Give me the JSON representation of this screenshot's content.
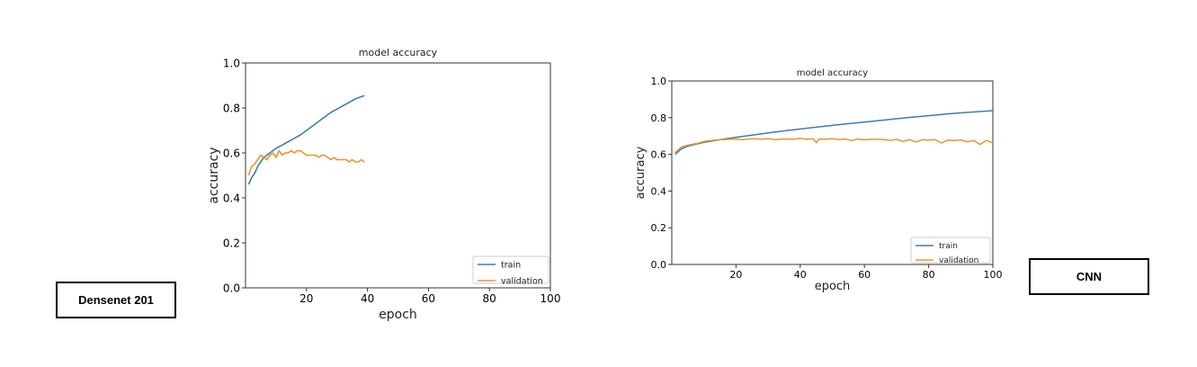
{
  "labels": {
    "left": "Densenet 201",
    "right": "CNN"
  },
  "colors": {
    "train": "#3b7fb5",
    "validation": "#f0922e",
    "axis": "#333333",
    "legend_border": "#cccccc"
  },
  "chart_data": [
    {
      "type": "line",
      "title": "model accuracy",
      "xlabel": "epoch",
      "ylabel": "accuracy",
      "xlim": [
        0,
        100
      ],
      "ylim": [
        0.0,
        1.0
      ],
      "xticks": [
        20,
        40,
        60,
        80,
        100
      ],
      "yticks": [
        0.0,
        0.2,
        0.4,
        0.6,
        0.8,
        1.0
      ],
      "xtick_labels": [
        "20",
        "40",
        "60",
        "80",
        "100"
      ],
      "ytick_labels": [
        "0.0",
        "0.2",
        "0.4",
        "0.6",
        "0.8",
        "1.0"
      ],
      "legend_position": "lower-right",
      "grid": false,
      "series": [
        {
          "name": "train",
          "x": [
            1,
            2,
            3,
            4,
            5,
            6,
            8,
            10,
            12,
            14,
            16,
            18,
            20,
            22,
            24,
            26,
            28,
            30,
            32,
            34,
            36,
            38,
            39
          ],
          "y": [
            0.46,
            0.49,
            0.51,
            0.54,
            0.56,
            0.58,
            0.6,
            0.62,
            0.635,
            0.65,
            0.665,
            0.68,
            0.7,
            0.72,
            0.74,
            0.76,
            0.78,
            0.795,
            0.81,
            0.825,
            0.84,
            0.85,
            0.855
          ]
        },
        {
          "name": "validation",
          "x": [
            1,
            2,
            3,
            4,
            5,
            6,
            7,
            8,
            9,
            10,
            11,
            12,
            13,
            14,
            15,
            16,
            17,
            18,
            19,
            20,
            21,
            22,
            23,
            24,
            25,
            26,
            27,
            28,
            29,
            30,
            31,
            32,
            33,
            34,
            35,
            36,
            37,
            38,
            39
          ],
          "y": [
            0.5,
            0.54,
            0.55,
            0.57,
            0.59,
            0.58,
            0.57,
            0.59,
            0.6,
            0.58,
            0.61,
            0.59,
            0.6,
            0.6,
            0.61,
            0.6,
            0.61,
            0.61,
            0.6,
            0.59,
            0.59,
            0.59,
            0.59,
            0.58,
            0.59,
            0.59,
            0.58,
            0.57,
            0.58,
            0.57,
            0.57,
            0.57,
            0.57,
            0.56,
            0.57,
            0.56,
            0.56,
            0.57,
            0.56
          ]
        }
      ]
    },
    {
      "type": "line",
      "title": "model accuracy",
      "xlabel": "epoch",
      "ylabel": "accuracy",
      "xlim": [
        0,
        100
      ],
      "ylim": [
        0.0,
        1.0
      ],
      "xticks": [
        20,
        40,
        60,
        80,
        100
      ],
      "yticks": [
        0.0,
        0.2,
        0.4,
        0.6,
        0.8,
        1.0
      ],
      "xtick_labels": [
        "20",
        "40",
        "60",
        "80",
        "100"
      ],
      "ytick_labels": [
        "0.0",
        "0.2",
        "0.4",
        "0.6",
        "0.8",
        "1.0"
      ],
      "legend_position": "lower-right",
      "grid": false,
      "series": [
        {
          "name": "train",
          "x": [
            1,
            3,
            5,
            10,
            15,
            20,
            25,
            30,
            35,
            40,
            45,
            50,
            55,
            60,
            65,
            70,
            75,
            80,
            85,
            90,
            95,
            100
          ],
          "y": [
            0.6,
            0.63,
            0.645,
            0.665,
            0.68,
            0.693,
            0.705,
            0.717,
            0.728,
            0.738,
            0.748,
            0.758,
            0.767,
            0.776,
            0.785,
            0.794,
            0.803,
            0.811,
            0.819,
            0.826,
            0.832,
            0.838
          ]
        },
        {
          "name": "validation",
          "x": [
            1,
            3,
            5,
            8,
            10,
            12,
            15,
            18,
            20,
            22,
            25,
            28,
            30,
            32,
            35,
            38,
            40,
            42,
            44,
            45,
            46,
            48,
            50,
            52,
            54,
            56,
            58,
            60,
            62,
            64,
            66,
            68,
            70,
            72,
            74,
            76,
            78,
            80,
            82,
            84,
            86,
            88,
            90,
            92,
            94,
            96,
            98,
            100
          ],
          "y": [
            0.61,
            0.64,
            0.65,
            0.66,
            0.67,
            0.675,
            0.68,
            0.682,
            0.684,
            0.68,
            0.685,
            0.683,
            0.686,
            0.68,
            0.684,
            0.683,
            0.687,
            0.683,
            0.685,
            0.663,
            0.684,
            0.682,
            0.686,
            0.681,
            0.684,
            0.675,
            0.684,
            0.679,
            0.683,
            0.682,
            0.681,
            0.676,
            0.683,
            0.67,
            0.681,
            0.667,
            0.68,
            0.678,
            0.68,
            0.662,
            0.678,
            0.675,
            0.679,
            0.668,
            0.676,
            0.654,
            0.676,
            0.662
          ]
        }
      ]
    }
  ]
}
